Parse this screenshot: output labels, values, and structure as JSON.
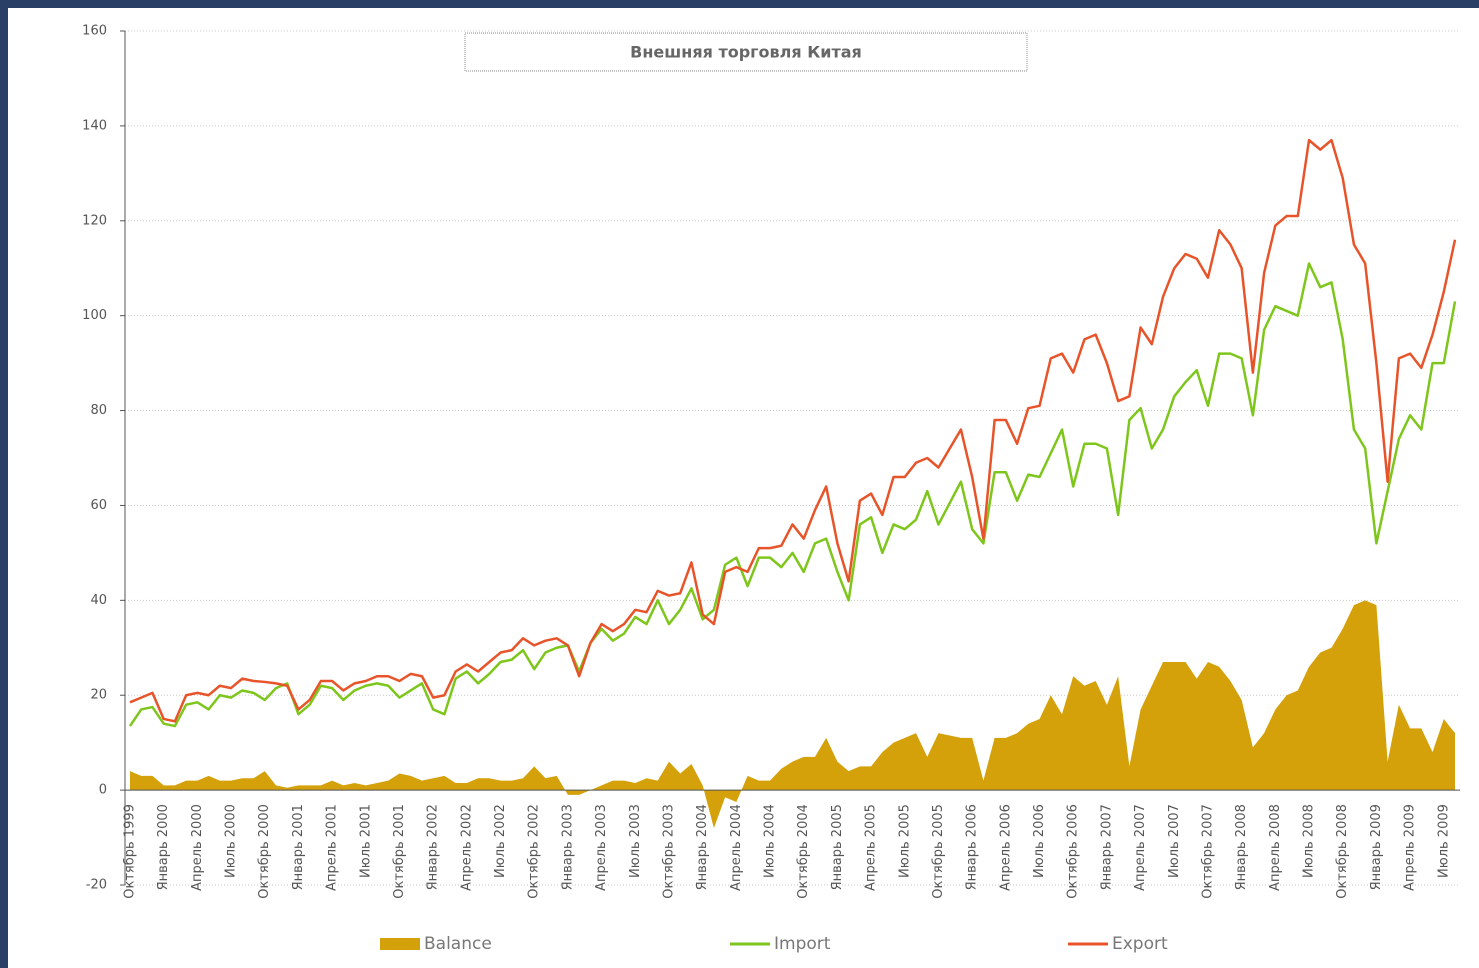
{
  "chart_data": {
    "type": "combo",
    "title": "Внешняя торговля Китая",
    "categories": [
      "Октябрь 1999",
      null,
      null,
      "Январь 2000",
      null,
      null,
      "Апрель 2000",
      null,
      null,
      "Июль 2000",
      null,
      null,
      "Октябрь 2000",
      null,
      null,
      "Январь 2001",
      null,
      null,
      "Апрель 2001",
      null,
      null,
      "Июль 2001",
      null,
      null,
      "Октябрь 2001",
      null,
      null,
      "Январь 2002",
      null,
      null,
      "Апрель 2002",
      null,
      null,
      "Июль 2002",
      null,
      null,
      "Октябрь 2002",
      null,
      null,
      "Январь 2003",
      null,
      null,
      "Апрель 2003",
      null,
      null,
      "Июль 2003",
      null,
      null,
      "Октябрь 2003",
      null,
      null,
      "Январь 2004",
      null,
      null,
      "Апрель 2004",
      null,
      null,
      "Июль 2004",
      null,
      null,
      "Октябрь 2004",
      null,
      null,
      "Январь 2005",
      null,
      null,
      "Апрель 2005",
      null,
      null,
      "Июль 2005",
      null,
      null,
      "Октябрь 2005",
      null,
      null,
      "Январь 2006",
      null,
      null,
      "Апрель 2006",
      null,
      null,
      "Июль 2006",
      null,
      null,
      "Октябрь 2006",
      null,
      null,
      "Январь 2007",
      null,
      null,
      "Апрель 2007",
      null,
      null,
      "Июль 2007",
      null,
      null,
      "Октябрь 2007",
      null,
      null,
      "Январь 2008",
      null,
      null,
      "Апрель 2008",
      null,
      null,
      "Июль 2008",
      null,
      null,
      "Октябрь 2008",
      null,
      null,
      "Январь 2009",
      null,
      null,
      "Апрель 2009",
      null,
      null,
      "Июль 2009",
      null
    ],
    "series": [
      {
        "name": "Balance",
        "type": "area",
        "color": "#d4a10a",
        "values": [
          4,
          3,
          3,
          1,
          1,
          2,
          2,
          3,
          2,
          2,
          2.5,
          2.5,
          4,
          1,
          0.5,
          1,
          1,
          1,
          2,
          1,
          1.5,
          1,
          1.5,
          2,
          3.5,
          3,
          2,
          2.5,
          3,
          1.5,
          1.5,
          2.5,
          2.5,
          2,
          2,
          2.5,
          5,
          2.5,
          3,
          -1,
          -1,
          0,
          1,
          2,
          2,
          1.5,
          2.5,
          2,
          6,
          3.5,
          5.5,
          1,
          -8,
          -1.5,
          -2.5,
          3,
          2,
          2,
          4.5,
          6,
          7,
          7,
          11,
          6,
          4,
          5,
          5,
          8,
          10,
          11,
          12,
          7,
          12,
          11.5,
          11,
          11,
          2,
          11,
          11,
          12,
          14,
          15,
          20,
          16,
          24,
          22,
          23,
          18,
          24,
          5,
          17,
          22,
          27,
          27,
          27,
          23.5,
          27,
          26,
          23,
          19,
          9,
          12,
          17,
          20,
          21,
          26,
          29,
          30,
          34,
          39,
          40,
          39,
          6,
          18,
          13,
          13,
          8,
          15,
          12
        ]
      },
      {
        "name": "Import",
        "type": "line",
        "color": "#7ec61c",
        "values": [
          13.5,
          17,
          17.5,
          14,
          13.5,
          18,
          18.5,
          17,
          20,
          19.5,
          21,
          20.5,
          19,
          21.5,
          22.5,
          16,
          18,
          22,
          21.5,
          19,
          21,
          22,
          22.5,
          22,
          19.5,
          21,
          22.5,
          17,
          16,
          23.5,
          25,
          22.5,
          24.5,
          27,
          27.5,
          29.5,
          25.5,
          29,
          30,
          30.5,
          25,
          31,
          34,
          31.5,
          33,
          36.5,
          35,
          40,
          35,
          38,
          42.5,
          36,
          38,
          47.5,
          49,
          43,
          49,
          49,
          47,
          50,
          46,
          52,
          53,
          46,
          40,
          56,
          57.5,
          50,
          56,
          55,
          57,
          63,
          56,
          60.5,
          65,
          55,
          52,
          67,
          67,
          61,
          66.5,
          66,
          71,
          76,
          64,
          73,
          73,
          72,
          58,
          78,
          80.5,
          72,
          76,
          83,
          86,
          88.5,
          81,
          92,
          92,
          91,
          79,
          97,
          102,
          101,
          100,
          111,
          106,
          107,
          95,
          76,
          72,
          52,
          63,
          74,
          79,
          76,
          90,
          90,
          103
        ]
      },
      {
        "name": "Export",
        "type": "line",
        "color": "#e8542a",
        "values": [
          18.5,
          19.5,
          20.5,
          15,
          14.5,
          20,
          20.5,
          20,
          22,
          21.5,
          23.5,
          23,
          22.8,
          22.5,
          22,
          17,
          19,
          23,
          23,
          21,
          22.5,
          23,
          24,
          24,
          23,
          24.5,
          24,
          19.5,
          20,
          25,
          26.5,
          25,
          27,
          29,
          29.5,
          32,
          30.5,
          31.5,
          32,
          30.5,
          24,
          31,
          35,
          33.5,
          35,
          38,
          37.5,
          42,
          41,
          41.5,
          48,
          37,
          35,
          46,
          47,
          46,
          51,
          51,
          51.5,
          56,
          53,
          59,
          64,
          52,
          44,
          61,
          62.5,
          58,
          66,
          66,
          69,
          70,
          68,
          72,
          76,
          66,
          53,
          78,
          78,
          73,
          80.5,
          81,
          91,
          92,
          88,
          95,
          96,
          90,
          82,
          83,
          97.5,
          94,
          104,
          110,
          113,
          112,
          108,
          118,
          115,
          110,
          88,
          109,
          119,
          121,
          121,
          137,
          135,
          137,
          129,
          115,
          111,
          90,
          65,
          91,
          92,
          89,
          96,
          105,
          116
        ]
      }
    ],
    "ylim": [
      -20,
      160
    ],
    "yticks": [
      -20,
      0,
      20,
      40,
      60,
      80,
      100,
      120,
      140,
      160
    ],
    "grid": true,
    "legend": "bottom"
  }
}
